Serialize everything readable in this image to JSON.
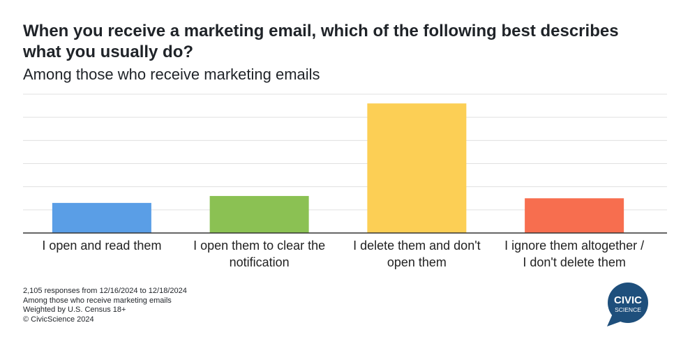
{
  "chart_data": {
    "type": "bar",
    "title": "When you receive a marketing email, which of the following best describes what you usually do?",
    "subtitle": "Among those who receive marketing emails",
    "categories": [
      [
        "I open and read them"
      ],
      [
        "I open them to clear the",
        "notification"
      ],
      [
        "I delete them and don't",
        "open them"
      ],
      [
        "I ignore them altogether /",
        "I don't delete them"
      ]
    ],
    "values": [
      13,
      16,
      56,
      15
    ],
    "colors": [
      "#5a9ee6",
      "#8bc153",
      "#fccf55",
      "#f76e4f"
    ],
    "ylim": [
      0,
      60
    ],
    "grid": true,
    "xlabel": "",
    "ylabel": ""
  },
  "footer": {
    "line1": "2,105 responses from 12/16/2024 to 12/18/2024",
    "line2": "Among those who receive marketing emails",
    "line3": "Weighted by U.S. Census 18+",
    "line4": "© CivicScience 2024"
  },
  "logo": {
    "line1": "CIVIC",
    "line2": "SCIENCE",
    "color": "#1e4f7c"
  }
}
